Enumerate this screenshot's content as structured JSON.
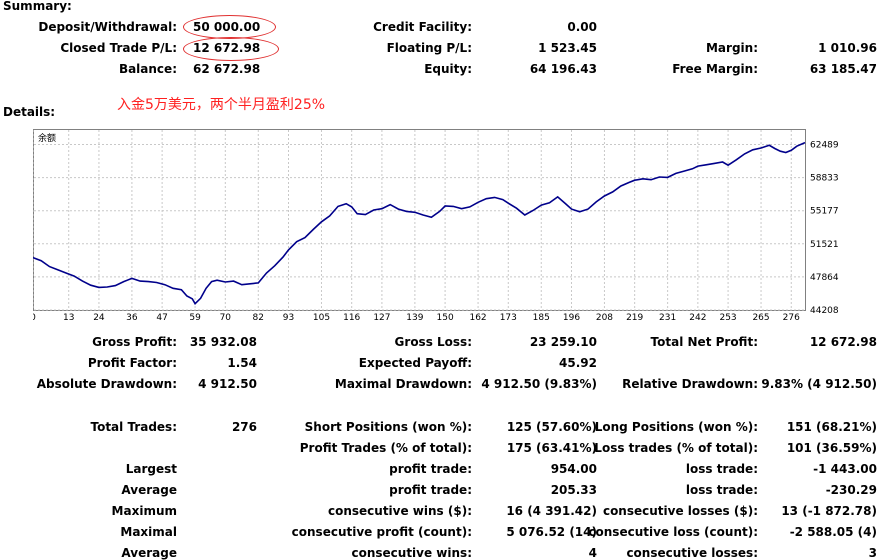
{
  "summary": {
    "title": "Summary:",
    "deposit_label": "Deposit/Withdrawal:",
    "deposit_value": "50 000.00",
    "closed_pl_label": "Closed Trade P/L:",
    "closed_pl_value": "12 672.98",
    "balance_label": "Balance:",
    "balance_value": "62 672.98",
    "credit_label": "Credit Facility:",
    "credit_value": "0.00",
    "floating_label": "Floating P/L:",
    "floating_value": "1 523.45",
    "equity_label": "Equity:",
    "equity_value": "64 196.43",
    "margin_label": "Margin:",
    "margin_value": "1 010.96",
    "free_margin_label": "Free Margin:",
    "free_margin_value": "63 185.47"
  },
  "annotation": "入金5万美元，两个半月盈利25%",
  "details": {
    "title": "Details:"
  },
  "chart_data": {
    "type": "line",
    "title": "余额",
    "x_ticks": [
      "0",
      "13",
      "24",
      "36",
      "47",
      "59",
      "70",
      "82",
      "93",
      "105",
      "116",
      "127",
      "139",
      "150",
      "162",
      "173",
      "185",
      "196",
      "208",
      "219",
      "231",
      "242",
      "253",
      "265",
      "276"
    ],
    "y_ticks": [
      "62489",
      "58833",
      "55177",
      "51521",
      "47864",
      "44208"
    ],
    "xlim": [
      0,
      281
    ],
    "ylim": [
      44208,
      64200
    ],
    "line_color": "#00008b",
    "grid": "dashed",
    "series": [
      {
        "x": [
          0,
          3,
          6,
          9,
          12,
          15,
          18,
          21,
          24,
          27,
          30,
          33,
          36,
          39,
          42,
          45,
          48,
          51,
          54,
          56,
          58,
          59,
          61,
          63,
          65,
          67,
          70,
          73,
          76,
          79,
          82,
          85,
          88,
          91,
          93,
          96,
          99,
          102,
          105,
          108,
          111,
          114,
          116,
          118,
          121,
          124,
          127,
          130,
          133,
          136,
          139,
          142,
          145,
          148,
          150,
          153,
          156,
          159,
          162,
          165,
          168,
          171,
          173,
          176,
          179,
          182,
          185,
          188,
          191,
          194,
          196,
          199,
          202,
          205,
          208,
          211,
          214,
          217,
          219,
          222,
          225,
          228,
          231,
          234,
          237,
          240,
          242,
          245,
          248,
          251,
          253,
          256,
          259,
          262,
          265,
          268,
          270,
          272,
          274,
          276,
          278,
          281
        ],
        "values": [
          50000,
          49650,
          49000,
          48650,
          48300,
          47950,
          47400,
          46950,
          46700,
          46750,
          46900,
          47350,
          47700,
          47400,
          47350,
          47250,
          47000,
          46600,
          46450,
          45750,
          45450,
          44900,
          45500,
          46600,
          47350,
          47500,
          47300,
          47400,
          47000,
          47100,
          47200,
          48300,
          49100,
          50050,
          50850,
          51750,
          52200,
          53100,
          53950,
          54600,
          55650,
          55950,
          55600,
          54850,
          54750,
          55250,
          55400,
          55850,
          55350,
          55100,
          55000,
          54700,
          54450,
          55100,
          55700,
          55650,
          55400,
          55600,
          56100,
          56500,
          56650,
          56400,
          56000,
          55450,
          54700,
          55200,
          55800,
          56050,
          56700,
          55900,
          55350,
          55050,
          55350,
          56150,
          56800,
          57250,
          57900,
          58300,
          58550,
          58700,
          58600,
          58900,
          58850,
          59300,
          59550,
          59800,
          60100,
          60250,
          60400,
          60550,
          60200,
          60800,
          61450,
          61900,
          62100,
          62400,
          62050,
          61750,
          61600,
          61850,
          62300,
          62700
        ]
      }
    ]
  },
  "stats": {
    "gross_profit_label": "Gross Profit:",
    "gross_profit_value": "35 932.08",
    "gross_loss_label": "Gross Loss:",
    "gross_loss_value": "23 259.10",
    "total_net_label": "Total Net Profit:",
    "total_net_value": "12 672.98",
    "profit_factor_label": "Profit Factor:",
    "profit_factor_value": "1.54",
    "expected_payoff_label": "Expected Payoff:",
    "expected_payoff_value": "45.92",
    "abs_dd_label": "Absolute Drawdown:",
    "abs_dd_value": "4 912.50",
    "max_dd_label": "Maximal Drawdown:",
    "max_dd_value": "4 912.50 (9.83%)",
    "rel_dd_label": "Relative Drawdown:",
    "rel_dd_value": "9.83% (4 912.50)",
    "total_trades_label": "Total Trades:",
    "total_trades_value": "276",
    "short_label": "Short Positions (won %):",
    "short_value": "125 (57.60%)",
    "long_label": "Long Positions (won %):",
    "long_value": "151 (68.21%)",
    "profit_trades_label": "Profit Trades (% of total):",
    "profit_trades_value": "175 (63.41%)",
    "loss_trades_label": "Loss trades (% of total):",
    "loss_trades_value": "101 (36.59%)",
    "largest_label": "Largest",
    "largest_profit_label": "profit trade:",
    "largest_profit_value": "954.00",
    "largest_loss_label": "loss trade:",
    "largest_loss_value": "-1 443.00",
    "average_label": "Average",
    "avg_profit_label": "profit trade:",
    "avg_profit_value": "205.33",
    "avg_loss_label": "loss trade:",
    "avg_loss_value": "-230.29",
    "maximum_label": "Maximum",
    "max_cons_wins_label": "consecutive wins ($):",
    "max_cons_wins_value": "16 (4 391.42)",
    "max_cons_losses_label": "consecutive losses ($):",
    "max_cons_losses_value": "13 (-1 872.78)",
    "maximal_label": "Maximal",
    "maximal_cons_profit_label": "consecutive profit (count):",
    "maximal_cons_profit_value": "5 076.52 (14)",
    "maximal_cons_loss_label": "consecutive loss (count):",
    "maximal_cons_loss_value": "-2 588.05 (4)",
    "average2_label": "Average",
    "avg_cons_wins_label": "consecutive wins:",
    "avg_cons_wins_value": "4",
    "avg_cons_losses_label": "consecutive losses:",
    "avg_cons_losses_value": "3"
  }
}
